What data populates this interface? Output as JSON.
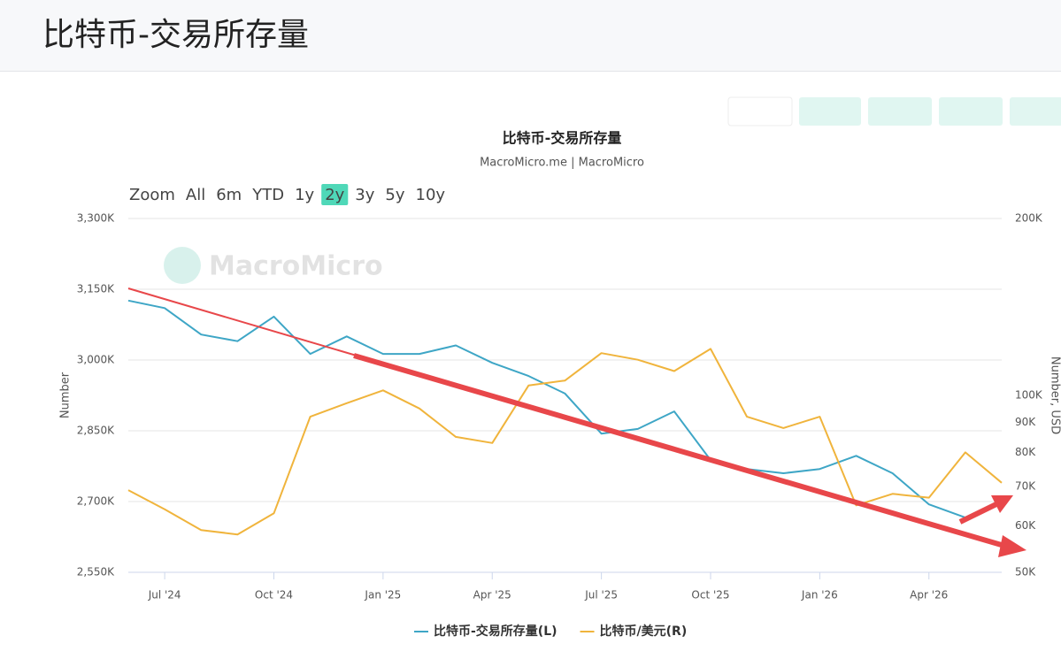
{
  "header": {
    "title": "比特币-交易所存量"
  },
  "chart_data": {
    "type": "line",
    "title": "比特币-交易所存量",
    "subtitle": "MacroMicro.me | MacroMicro",
    "watermark": "MacroMicro",
    "zoom": {
      "label": "Zoom",
      "options": [
        "All",
        "6m",
        "YTD",
        "1y",
        "2y",
        "3y",
        "5y",
        "10y"
      ],
      "selected": 4,
      "selected_color": "#4fd8b8"
    },
    "x": [
      "2024-06",
      "2024-07",
      "2024-08",
      "2024-09",
      "2024-10",
      "2024-11",
      "2024-12",
      "2025-01",
      "2025-02",
      "2025-03",
      "2025-04",
      "2025-05",
      "2025-06",
      "2025-07",
      "2025-08",
      "2025-09",
      "2025-10",
      "2025-11",
      "2025-12",
      "2026-01",
      "2026-02",
      "2026-03",
      "2026-04",
      "2026-05",
      "2026-06"
    ],
    "xlim": [
      "2024-06",
      "2026-06"
    ],
    "xticks": [
      {
        "value": "2024-07",
        "label": "Jul '24"
      },
      {
        "value": "2024-10",
        "label": "Oct '24"
      },
      {
        "value": "2025-01",
        "label": "Jan '25"
      },
      {
        "value": "2025-04",
        "label": "Apr '25"
      },
      {
        "value": "2025-07",
        "label": "Jul '25"
      },
      {
        "value": "2025-10",
        "label": "Oct '25"
      },
      {
        "value": "2026-01",
        "label": "Jan '26"
      },
      {
        "value": "2026-04",
        "label": "Apr '26"
      }
    ],
    "ylabel": "Number",
    "y2label": "Number, USD",
    "ylim": [
      2550000,
      3300000
    ],
    "yticks": [
      {
        "value": 2550000,
        "label": "2,550K"
      },
      {
        "value": 2700000,
        "label": "2,700K"
      },
      {
        "value": 2850000,
        "label": "2,850K"
      },
      {
        "value": 3000000,
        "label": "3,000K"
      },
      {
        "value": 3150000,
        "label": "3,150K"
      },
      {
        "value": 3300000,
        "label": "3,300K"
      }
    ],
    "y2lim": [
      50000,
      200000
    ],
    "y2scale": "log",
    "y2ticks": [
      {
        "value": 50000,
        "label": "50K"
      },
      {
        "value": 60000,
        "label": "60K"
      },
      {
        "value": 70000,
        "label": "70K"
      },
      {
        "value": 80000,
        "label": "80K"
      },
      {
        "value": 90000,
        "label": "90K"
      },
      {
        "value": 100000,
        "label": "100K"
      },
      {
        "value": 200000,
        "label": "200K"
      }
    ],
    "grid": true,
    "legend": "bottom",
    "series": [
      {
        "name": "比特币-交易所存量(L)",
        "color": "#3ea6c6",
        "axis": "y",
        "values": [
          3126000,
          3110000,
          3054000,
          3040000,
          3092000,
          3013000,
          3050000,
          3013000,
          3013000,
          3031000,
          2994000,
          2966000,
          2929000,
          2844000,
          2854000,
          2891000,
          2788000,
          2769000,
          2760000,
          2769000,
          2797000,
          2760000,
          2694000,
          2666000,
          null
        ]
      },
      {
        "name": "比特币/美元(R)",
        "color": "#f0b43c",
        "axis": "y2",
        "values": [
          69000,
          64000,
          59000,
          58000,
          63000,
          92000,
          97000,
          102000,
          95000,
          85000,
          83000,
          104000,
          106000,
          118000,
          115000,
          110000,
          120000,
          92000,
          88000,
          92000,
          65000,
          68000,
          67000,
          80000,
          71000
        ]
      }
    ]
  }
}
